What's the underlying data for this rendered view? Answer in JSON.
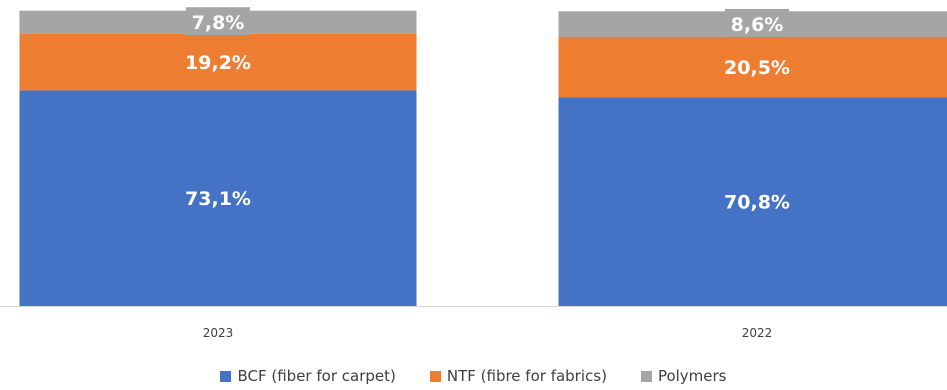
{
  "chart_data": {
    "type": "bar",
    "stacked": true,
    "percent_stacked": true,
    "categories": [
      "2023",
      "2022"
    ],
    "series": [
      {
        "name": "BCF (fiber for carpet)",
        "color": "#4472C4",
        "values": [
          73.1,
          70.8
        ],
        "labels": [
          "73,1%",
          "70,8%"
        ]
      },
      {
        "name": "NTF (fibre for fabrics)",
        "color": "#ED7D31",
        "values": [
          19.2,
          20.5
        ],
        "labels": [
          "19,2%",
          "20,5%"
        ]
      },
      {
        "name": "Polymers",
        "color": "#A5A5A5",
        "values": [
          7.8,
          8.6
        ],
        "labels": [
          "7,8%",
          "8,6%"
        ]
      }
    ],
    "ylim": [
      0,
      100
    ],
    "grid": false,
    "legend_position": "bottom"
  }
}
